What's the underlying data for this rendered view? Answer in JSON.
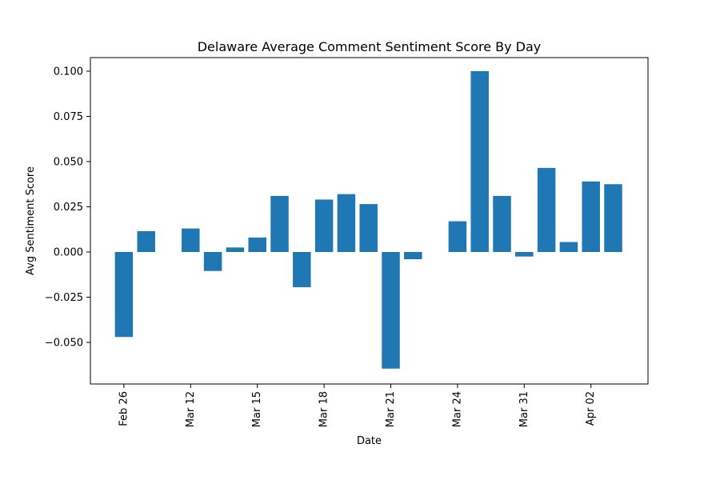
{
  "chart_data": {
    "type": "bar",
    "title": "Delaware Average Comment Sentiment Score By Day",
    "xlabel": "Date",
    "ylabel": "Avg Sentiment Score",
    "color": "#1f77b4",
    "ylim": [
      -0.073,
      0.1075
    ],
    "yticks": [
      -0.05,
      -0.025,
      0.0,
      0.025,
      0.05,
      0.075,
      0.1
    ],
    "ytick_labels": [
      "−0.050",
      "−0.025",
      "0.000",
      "0.025",
      "0.050",
      "0.075",
      "0.100"
    ],
    "xtick_labels": [
      "Feb 26",
      "Mar 12",
      "Mar 15",
      "Mar 18",
      "Mar 21",
      "Mar 24",
      "Mar 31",
      "Apr 02"
    ],
    "xtick_bar_index": [
      0,
      3,
      6,
      9,
      12,
      15,
      18,
      21
    ],
    "values": [
      -0.047,
      0.0115,
      null,
      0.013,
      -0.0105,
      0.0025,
      0.008,
      0.031,
      -0.0195,
      0.029,
      0.032,
      0.0265,
      -0.0645,
      -0.004,
      null,
      0.017,
      0.1,
      0.031,
      -0.0025,
      0.0465,
      0.0055,
      0.039,
      0.0375
    ],
    "grid": false
  }
}
